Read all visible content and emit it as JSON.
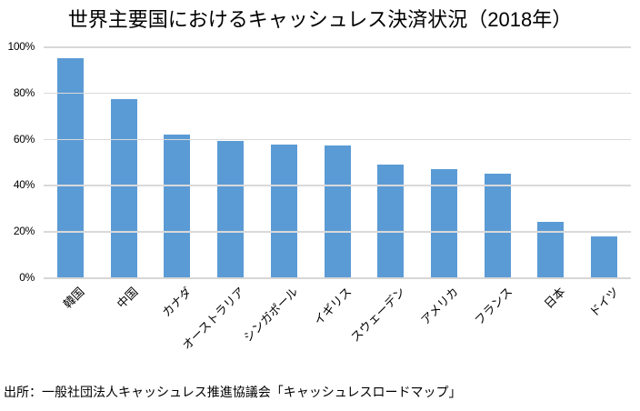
{
  "chart_data": {
    "type": "bar",
    "title": "世界主要国におけるキャッシュレス決済状況（2018年）",
    "categories": [
      "韓国",
      "中国",
      "カナダ",
      "オーストラリア",
      "シンガポール",
      "イギリス",
      "スウェーデン",
      "アメリカ",
      "フランス",
      "日本",
      "ドイツ"
    ],
    "values": [
      94.7,
      77.3,
      62.0,
      59.1,
      57.6,
      57.0,
      48.9,
      47.0,
      44.8,
      24.1,
      17.9
    ],
    "xlabel": "",
    "ylabel": "",
    "ylim": [
      0,
      100
    ],
    "y_ticks": [
      "100%",
      "80%",
      "60%",
      "40%",
      "20%",
      "0%"
    ],
    "grid": true,
    "legend_position": "none",
    "bar_color": "#5b9bd5",
    "gridline_color": "#d9d9d9"
  },
  "source_note": "出所：一般社団法人キャッシュレス推進協議会「キャッシュレスロードマップ」"
}
